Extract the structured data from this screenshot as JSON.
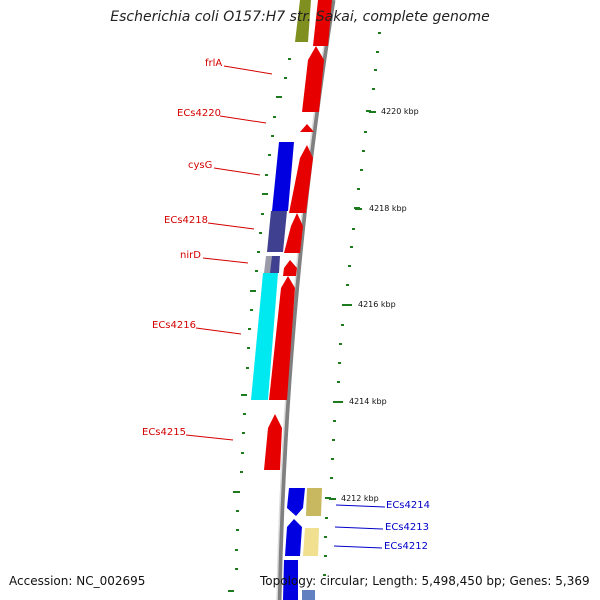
{
  "title": "Escherichia coli O157:H7 str. Sakai, complete genome",
  "accession": "Accession: NC_002695",
  "topology": "Topology: circular; Length: 5,498,450 bp; Genes: 5,369",
  "ticks": [
    {
      "label": "4220 kbp"
    },
    {
      "label": "4218 kbp"
    },
    {
      "label": "4216 kbp"
    },
    {
      "label": "4214 kbp"
    },
    {
      "label": "4212 kbp"
    }
  ],
  "genes_left": [
    {
      "name": "frlA"
    },
    {
      "name": "ECs4220"
    },
    {
      "name": "cysG"
    },
    {
      "name": "ECs4218"
    },
    {
      "name": "nirD"
    },
    {
      "name": "ECs4216"
    },
    {
      "name": "ECs4215"
    }
  ],
  "genes_right": [
    {
      "name": "ECs4214"
    },
    {
      "name": "ECs4213"
    },
    {
      "name": "ECs4212"
    }
  ],
  "colors": {
    "forward_cds": "#e60000",
    "reverse_cds": "#0000e0",
    "cyan_cds": "#00e8f0",
    "slate_cds": "#404090",
    "olive_cds": "#809020",
    "khaki_cds": "#c8b860",
    "backbone": "#808080",
    "tick_mark": "#1e7a1e",
    "label_red": "#d40000",
    "label_blue": "#0000c8"
  }
}
